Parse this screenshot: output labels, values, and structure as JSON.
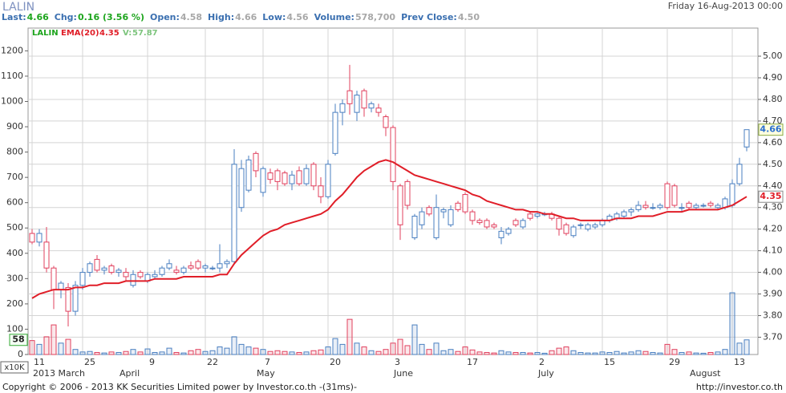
{
  "header": {
    "symbol": "LALIN",
    "datetime": "Friday 16-Aug-2013 00:00",
    "stats": [
      {
        "label": "Last:",
        "value": "4.66"
      },
      {
        "label": "Chg:",
        "value": "0.16 (3.56 %)"
      },
      {
        "label": "Open:",
        "value": "4.58"
      },
      {
        "label": "High:",
        "value": "4.66"
      },
      {
        "label": "Low:",
        "value": "4.56"
      },
      {
        "label": "Volume:",
        "value": "578,700"
      },
      {
        "label": "Prev Close:",
        "value": "4.50"
      }
    ]
  },
  "chart_data": {
    "type": "candlestick",
    "symbol": "LALIN",
    "symbol_color": "#1ea51e",
    "up_color": "#4a7fc0",
    "down_color": "#e0405e",
    "grid": true,
    "categories": [
      "11",
      null,
      null,
      null,
      null,
      null,
      null,
      "25",
      null,
      null,
      null,
      null,
      null,
      null,
      null,
      null,
      "9",
      null,
      null,
      null,
      null,
      null,
      null,
      null,
      "22",
      null,
      null,
      null,
      null,
      null,
      null,
      null,
      "7",
      null,
      null,
      null,
      null,
      null,
      null,
      null,
      null,
      "20",
      null,
      null,
      null,
      null,
      null,
      null,
      null,
      null,
      "3",
      null,
      null,
      null,
      null,
      null,
      null,
      null,
      null,
      null,
      "17",
      null,
      null,
      null,
      null,
      null,
      null,
      null,
      null,
      null,
      "2",
      null,
      null,
      null,
      null,
      null,
      null,
      null,
      null,
      "15",
      null,
      null,
      null,
      null,
      null,
      null,
      null,
      null,
      "29",
      null,
      null,
      null,
      null,
      null,
      null,
      null,
      null,
      "13",
      null,
      null
    ],
    "months": [
      "2013 March",
      null,
      null,
      null,
      null,
      null,
      null,
      null,
      null,
      null,
      null,
      null,
      "April",
      null,
      null,
      null,
      null,
      null,
      null,
      null,
      null,
      null,
      null,
      null,
      null,
      null,
      null,
      null,
      null,
      null,
      null,
      "May",
      null,
      null,
      null,
      null,
      null,
      null,
      null,
      null,
      null,
      null,
      null,
      null,
      null,
      null,
      null,
      null,
      null,
      null,
      "June",
      null,
      null,
      null,
      null,
      null,
      null,
      null,
      null,
      null,
      null,
      null,
      null,
      null,
      null,
      null,
      null,
      null,
      null,
      null,
      "July",
      null,
      null,
      null,
      null,
      null,
      null,
      null,
      null,
      null,
      null,
      null,
      null,
      null,
      null,
      null,
      null,
      null,
      null,
      null,
      null,
      "August",
      null,
      null,
      null,
      null,
      null,
      null,
      null,
      null
    ],
    "open": [
      4.18,
      4.14,
      4.14,
      4.02,
      3.92,
      3.93,
      3.82,
      3.94,
      4.0,
      4.06,
      4.01,
      4.03,
      4.0,
      4.0,
      3.94,
      4.0,
      3.96,
      3.98,
      3.99,
      4.02,
      4.01,
      4.0,
      4.03,
      4.05,
      4.02,
      4.02,
      4.02,
      4.04,
      4.05,
      4.3,
      4.38,
      4.55,
      4.37,
      4.46,
      4.47,
      4.46,
      4.41,
      4.47,
      4.41,
      4.5,
      4.4,
      4.35,
      4.55,
      4.74,
      4.84,
      4.74,
      4.84,
      4.76,
      4.76,
      4.72,
      4.67,
      4.4,
      4.42,
      4.16,
      4.22,
      4.3,
      4.16,
      4.28,
      4.22,
      4.32,
      4.36,
      4.28,
      4.24,
      4.24,
      4.22,
      4.16,
      4.18,
      4.24,
      4.21,
      4.27,
      4.26,
      4.27,
      4.27,
      4.25,
      4.22,
      4.17,
      4.22,
      4.2,
      4.21,
      4.22,
      4.24,
      4.25,
      4.26,
      4.28,
      4.29,
      4.31,
      4.3,
      4.3,
      4.41,
      4.4,
      4.3,
      4.32,
      4.3,
      4.31,
      4.32,
      4.3,
      4.3,
      4.31,
      4.41,
      4.58
    ],
    "high": [
      4.2,
      4.2,
      4.21,
      4.03,
      3.96,
      3.95,
      3.96,
      4.02,
      4.05,
      4.08,
      4.03,
      4.04,
      4.02,
      4.02,
      4.01,
      4.01,
      4.0,
      4.01,
      4.03,
      4.06,
      4.03,
      4.03,
      4.05,
      4.06,
      4.04,
      4.03,
      4.13,
      4.06,
      4.57,
      4.52,
      4.54,
      4.56,
      4.49,
      4.48,
      4.48,
      4.47,
      4.47,
      4.49,
      4.5,
      4.51,
      4.44,
      4.52,
      4.78,
      4.8,
      4.96,
      4.84,
      4.85,
      4.79,
      4.78,
      4.73,
      4.68,
      4.41,
      4.43,
      4.27,
      4.3,
      4.31,
      4.36,
      4.3,
      4.31,
      4.33,
      4.37,
      4.29,
      4.25,
      4.25,
      4.23,
      4.21,
      4.21,
      4.25,
      4.25,
      4.28,
      4.28,
      4.28,
      4.28,
      4.26,
      4.23,
      4.22,
      4.23,
      4.23,
      4.23,
      4.25,
      4.27,
      4.28,
      4.29,
      4.3,
      4.33,
      4.33,
      4.32,
      4.32,
      4.42,
      4.41,
      4.32,
      4.33,
      4.32,
      4.32,
      4.33,
      4.32,
      4.35,
      4.43,
      4.53,
      4.66
    ],
    "low": [
      4.13,
      4.12,
      4.0,
      3.83,
      3.88,
      3.75,
      3.8,
      3.92,
      3.98,
      4.0,
      3.99,
      3.99,
      3.98,
      3.96,
      3.93,
      3.97,
      3.95,
      3.97,
      3.98,
      4.01,
      3.99,
      3.99,
      4.01,
      4.01,
      4.0,
      4.01,
      4.0,
      4.02,
      4.04,
      4.28,
      4.37,
      4.44,
      4.35,
      4.41,
      4.38,
      4.4,
      4.38,
      4.4,
      4.4,
      4.38,
      4.32,
      4.34,
      4.54,
      4.68,
      4.73,
      4.7,
      4.72,
      4.74,
      4.72,
      4.63,
      4.38,
      4.15,
      4.29,
      4.15,
      4.2,
      4.26,
      4.15,
      4.25,
      4.21,
      4.28,
      4.27,
      4.22,
      4.22,
      4.2,
      4.2,
      4.13,
      4.17,
      4.21,
      4.2,
      4.24,
      4.25,
      4.26,
      4.24,
      4.17,
      4.17,
      4.16,
      4.2,
      4.19,
      4.2,
      4.21,
      4.23,
      4.24,
      4.25,
      4.26,
      4.28,
      4.29,
      4.29,
      4.29,
      4.29,
      4.3,
      4.28,
      4.29,
      4.29,
      4.3,
      4.3,
      4.29,
      4.29,
      4.3,
      4.4,
      4.56
    ],
    "close": [
      4.14,
      4.18,
      4.02,
      3.92,
      3.95,
      3.82,
      3.94,
      4.0,
      4.04,
      4.01,
      4.02,
      4.0,
      4.01,
      3.98,
      3.99,
      3.98,
      3.99,
      3.99,
      4.02,
      4.04,
      4.0,
      4.02,
      4.02,
      4.02,
      4.03,
      4.02,
      4.04,
      4.05,
      4.5,
      4.48,
      4.52,
      4.47,
      4.48,
      4.43,
      4.42,
      4.41,
      4.45,
      4.41,
      4.48,
      4.4,
      4.35,
      4.5,
      4.74,
      4.78,
      4.78,
      4.82,
      4.76,
      4.78,
      4.74,
      4.67,
      4.42,
      4.22,
      4.31,
      4.26,
      4.28,
      4.27,
      4.3,
      4.29,
      4.29,
      4.29,
      4.28,
      4.24,
      4.23,
      4.21,
      4.21,
      4.19,
      4.2,
      4.22,
      4.24,
      4.25,
      4.27,
      4.27,
      4.25,
      4.2,
      4.18,
      4.21,
      4.22,
      4.22,
      4.22,
      4.24,
      4.26,
      4.27,
      4.28,
      4.29,
      4.31,
      4.3,
      4.3,
      4.31,
      4.3,
      4.31,
      4.3,
      4.3,
      4.31,
      4.31,
      4.31,
      4.31,
      4.34,
      4.41,
      4.5,
      4.66
    ],
    "ema": {
      "name": "EMA(20)",
      "color": "#e01e28",
      "values": [
        3.88,
        3.9,
        3.91,
        3.92,
        3.92,
        3.92,
        3.93,
        3.93,
        3.94,
        3.94,
        3.95,
        3.95,
        3.95,
        3.96,
        3.96,
        3.96,
        3.96,
        3.97,
        3.97,
        3.97,
        3.97,
        3.98,
        3.98,
        3.98,
        3.98,
        3.98,
        3.99,
        3.99,
        4.04,
        4.08,
        4.11,
        4.14,
        4.17,
        4.19,
        4.2,
        4.22,
        4.23,
        4.24,
        4.25,
        4.26,
        4.27,
        4.29,
        4.33,
        4.36,
        4.4,
        4.44,
        4.47,
        4.49,
        4.51,
        4.52,
        4.51,
        4.49,
        4.47,
        4.45,
        4.44,
        4.43,
        4.42,
        4.41,
        4.4,
        4.39,
        4.38,
        4.36,
        4.35,
        4.33,
        4.32,
        4.31,
        4.3,
        4.29,
        4.29,
        4.28,
        4.28,
        4.27,
        4.27,
        4.26,
        4.25,
        4.25,
        4.24,
        4.24,
        4.24,
        4.24,
        4.24,
        4.25,
        4.25,
        4.25,
        4.26,
        4.26,
        4.26,
        4.27,
        4.28,
        4.28,
        4.28,
        4.29,
        4.29,
        4.29,
        4.29,
        4.29,
        4.3,
        4.31,
        4.33,
        4.35
      ]
    },
    "volume": {
      "name": "V:",
      "color": "#7cc47c",
      "axis": "y2",
      "last_label": "58",
      "values": [
        55,
        40,
        70,
        117,
        45,
        60,
        20,
        10,
        12,
        8,
        6,
        10,
        8,
        12,
        20,
        10,
        22,
        8,
        10,
        25,
        8,
        6,
        15,
        20,
        12,
        15,
        30,
        25,
        70,
        40,
        30,
        25,
        20,
        12,
        15,
        12,
        10,
        8,
        10,
        15,
        18,
        30,
        63,
        40,
        139,
        45,
        30,
        15,
        12,
        20,
        45,
        60,
        35,
        117,
        40,
        20,
        45,
        15,
        20,
        12,
        30,
        18,
        10,
        8,
        6,
        15,
        10,
        8,
        8,
        6,
        8,
        5,
        15,
        25,
        30,
        15,
        8,
        6,
        6,
        10,
        8,
        12,
        6,
        10,
        15,
        12,
        8,
        6,
        40,
        20,
        8,
        10,
        6,
        5,
        8,
        10,
        20,
        244,
        45,
        57.87
      ]
    },
    "ylim": [
      3.62,
      5.13
    ],
    "yticks": [
      {
        "value": 3.7,
        "label": "3.70"
      },
      {
        "value": 3.8,
        "label": "3.80"
      },
      {
        "value": 3.9,
        "label": "3.90"
      },
      {
        "value": 4,
        "label": "4.00"
      },
      {
        "value": 4.1,
        "label": "4.10"
      },
      {
        "value": 4.2,
        "label": "4.20"
      },
      {
        "value": 4.3,
        "label": "4.30"
      },
      {
        "value": 4.4,
        "label": "4.40"
      },
      {
        "value": 4.5,
        "label": "4.50"
      },
      {
        "value": 4.6,
        "label": "4.60"
      },
      {
        "value": 4.7,
        "label": "4.70"
      },
      {
        "value": 4.8,
        "label": "4.80"
      },
      {
        "value": 4.9,
        "label": "4.90"
      },
      {
        "value": 5,
        "label": "5.00"
      }
    ],
    "y2lim": [
      0,
      1290
    ],
    "y2ticks": [
      0,
      100,
      200,
      300,
      400,
      500,
      600,
      700,
      800,
      900,
      1000,
      1100,
      1200
    ],
    "y2_unit": "x10K"
  },
  "footer": {
    "copyright": "Copyright © 2006 - 2013 KK Securities Limited power by Investor.co.th  -(31ms)-",
    "url": "http://investor.co.th"
  }
}
